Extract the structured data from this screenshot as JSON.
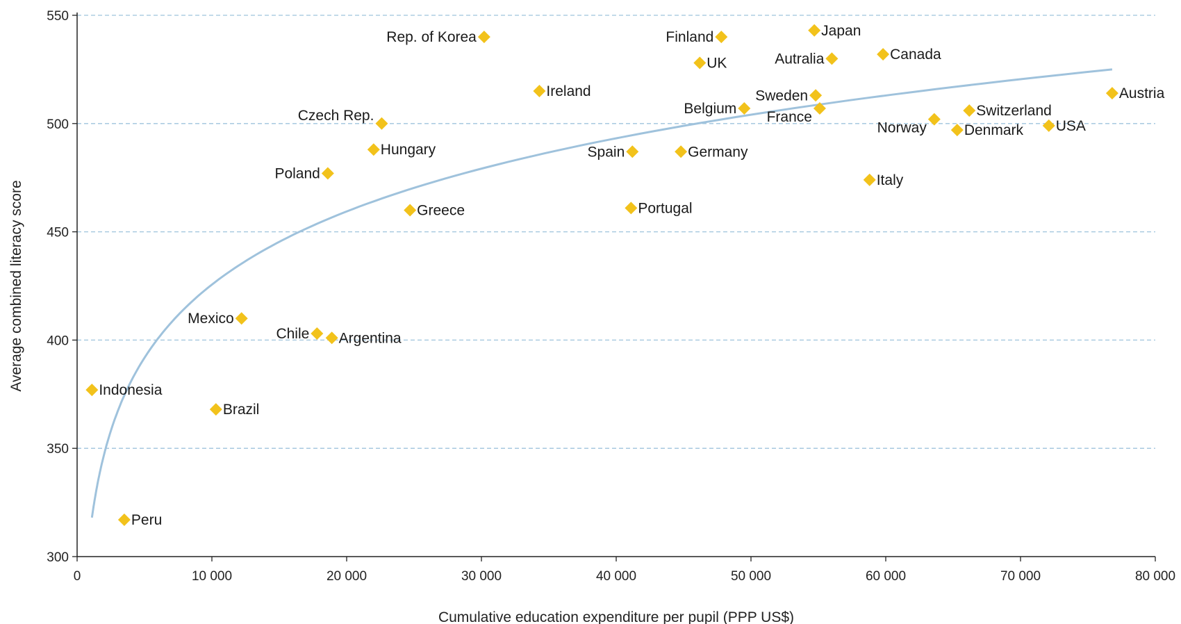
{
  "chart_data": {
    "type": "scatter",
    "title": "",
    "xlabel": "Cumulative education expenditure per pupil (PPP US$)",
    "ylabel": "Average combined literacy score",
    "xlim": [
      0,
      80000
    ],
    "ylim": [
      300,
      550
    ],
    "x_ticks": [
      0,
      10000,
      20000,
      30000,
      40000,
      50000,
      60000,
      70000,
      80000
    ],
    "x_tick_labels": [
      "0",
      "10 000",
      "20 000",
      "30 000",
      "40 000",
      "50 000",
      "60 000",
      "70 000",
      "80 000"
    ],
    "y_ticks": [
      300,
      350,
      400,
      450,
      500,
      550
    ],
    "y_tick_labels": [
      "300",
      "350",
      "400",
      "450",
      "500",
      "550"
    ],
    "grid": "horizontal-dashed",
    "marker_color": "#f2c21b",
    "trend_color": "#9fc2dc",
    "grid_color": "#9ec3dc",
    "points": [
      {
        "label": "Rep. of Korea",
        "x": 30200,
        "y": 540,
        "label_side": "left"
      },
      {
        "label": "Finland",
        "x": 47800,
        "y": 540,
        "label_side": "left"
      },
      {
        "label": "Japan",
        "x": 54700,
        "y": 543,
        "label_side": "right"
      },
      {
        "label": "UK",
        "x": 46200,
        "y": 528,
        "label_side": "right"
      },
      {
        "label": "Autralia",
        "x": 56000,
        "y": 530,
        "label_side": "left"
      },
      {
        "label": "Canada",
        "x": 59800,
        "y": 532,
        "label_side": "right"
      },
      {
        "label": "Ireland",
        "x": 34300,
        "y": 515,
        "label_side": "right"
      },
      {
        "label": "Sweden",
        "x": 54800,
        "y": 513,
        "label_side": "left"
      },
      {
        "label": "Belgium",
        "x": 49500,
        "y": 507,
        "label_side": "left"
      },
      {
        "label": "France",
        "x": 55100,
        "y": 507,
        "label_side": "left-below"
      },
      {
        "label": "Czech Rep.",
        "x": 22600,
        "y": 500,
        "label_side": "left-above"
      },
      {
        "label": "Switzerland",
        "x": 66200,
        "y": 506,
        "label_side": "right"
      },
      {
        "label": "Austria",
        "x": 76800,
        "y": 514,
        "label_side": "right"
      },
      {
        "label": "Norway",
        "x": 63600,
        "y": 502,
        "label_side": "left-below"
      },
      {
        "label": "Denmark",
        "x": 65300,
        "y": 497,
        "label_side": "right"
      },
      {
        "label": "USA",
        "x": 72100,
        "y": 499,
        "label_side": "right"
      },
      {
        "label": "Hungary",
        "x": 22000,
        "y": 488,
        "label_side": "right"
      },
      {
        "label": "Spain",
        "x": 41200,
        "y": 487,
        "label_side": "left"
      },
      {
        "label": "Germany",
        "x": 44800,
        "y": 487,
        "label_side": "right"
      },
      {
        "label": "Poland",
        "x": 18600,
        "y": 477,
        "label_side": "left"
      },
      {
        "label": "Italy",
        "x": 58800,
        "y": 474,
        "label_side": "right"
      },
      {
        "label": "Greece",
        "x": 24700,
        "y": 460,
        "label_side": "right"
      },
      {
        "label": "Portugal",
        "x": 41100,
        "y": 461,
        "label_side": "right"
      },
      {
        "label": "Mexico",
        "x": 12200,
        "y": 410,
        "label_side": "left"
      },
      {
        "label": "Chile",
        "x": 17800,
        "y": 403,
        "label_side": "left"
      },
      {
        "label": "Argentina",
        "x": 18900,
        "y": 401,
        "label_side": "right"
      },
      {
        "label": "Indonesia",
        "x": 1100,
        "y": 377,
        "label_side": "right"
      },
      {
        "label": "Brazil",
        "x": 10300,
        "y": 368,
        "label_side": "right"
      },
      {
        "label": "Peru",
        "x": 3500,
        "y": 317,
        "label_side": "right"
      }
    ],
    "trend": {
      "form": "logarithmic",
      "x_start": 1100,
      "x_end": 76800,
      "y_at_start": 318,
      "y_at_end": 525
    }
  }
}
